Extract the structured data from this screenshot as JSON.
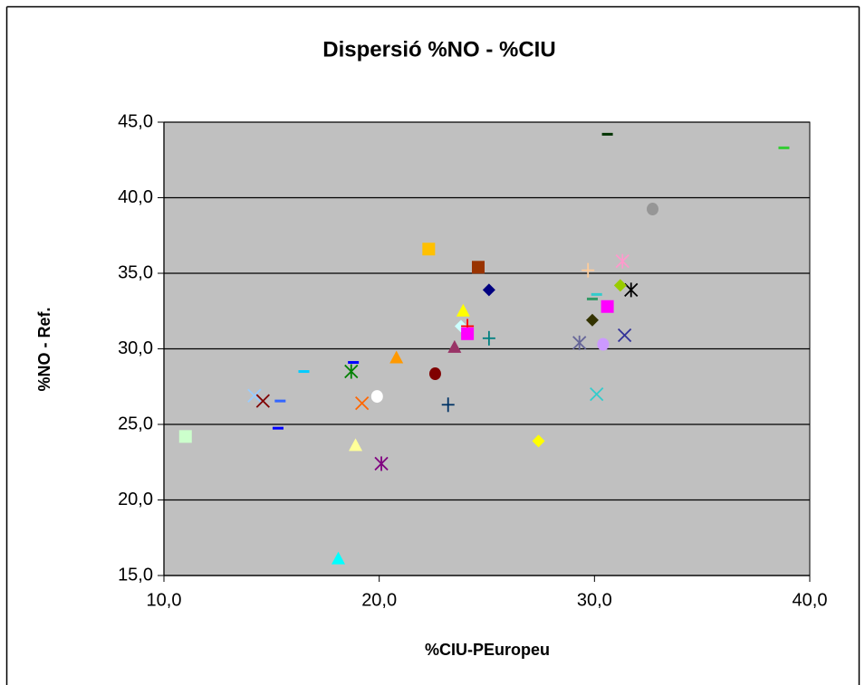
{
  "chart_data": {
    "type": "scatter",
    "title": "Dispersió %NO - %CIU",
    "x_label": "%CIU-PEuropeu",
    "y_label": "%NO - Ref.",
    "xlim": [
      10,
      40
    ],
    "ylim": [
      15,
      45
    ],
    "xticks": [
      {
        "value": 10,
        "label": "10,0"
      },
      {
        "value": 20,
        "label": "20,0"
      },
      {
        "value": 30,
        "label": "30,0"
      },
      {
        "value": 40,
        "label": "40,0"
      }
    ],
    "yticks": [
      {
        "value": 15,
        "label": "15,0"
      },
      {
        "value": 20,
        "label": "20,0"
      },
      {
        "value": 25,
        "label": "25,0"
      },
      {
        "value": 30,
        "label": "30,0"
      },
      {
        "value": 35,
        "label": "35,0"
      },
      {
        "value": 40,
        "label": "40,0"
      },
      {
        "value": 45,
        "label": "45,0"
      }
    ],
    "grid": true,
    "plot_background": "#c0c0c0",
    "series": [
      {
        "color": "#003300",
        "marker": "dash",
        "x": [
          30.6
        ],
        "values": [
          44.2
        ]
      },
      {
        "color": "#33cc33",
        "marker": "dash",
        "x": [
          38.8
        ],
        "values": [
          43.3
        ]
      },
      {
        "color": "#969696",
        "marker": "circle",
        "x": [
          32.7
        ],
        "values": [
          39.25
        ]
      },
      {
        "color": "#ffc000",
        "marker": "square",
        "x": [
          22.3
        ],
        "values": [
          36.6
        ]
      },
      {
        "color": "#993300",
        "marker": "square",
        "x": [
          24.6
        ],
        "values": [
          35.4
        ]
      },
      {
        "color": "#ff99cc",
        "marker": "asterisk",
        "x": [
          31.3
        ],
        "values": [
          35.8
        ]
      },
      {
        "color": "#ffcc99",
        "marker": "plus",
        "x": [
          29.7
        ],
        "values": [
          35.2
        ]
      },
      {
        "color": "#000000",
        "marker": "asterisk",
        "x": [
          31.7
        ],
        "values": [
          33.9
        ]
      },
      {
        "color": "#000080",
        "marker": "diamond",
        "x": [
          25.1
        ],
        "values": [
          33.9
        ]
      },
      {
        "color": "#99cc00",
        "marker": "diamond",
        "x": [
          31.2
        ],
        "values": [
          34.2
        ]
      },
      {
        "color": "#33cccc",
        "marker": "dash",
        "x": [
          30.1
        ],
        "values": [
          33.6
        ]
      },
      {
        "color": "#339966",
        "marker": "dash",
        "x": [
          29.9
        ],
        "values": [
          33.3
        ]
      },
      {
        "color": "#ff00ff",
        "marker": "square",
        "x": [
          30.6
        ],
        "values": [
          32.8
        ]
      },
      {
        "color": "#ffff00",
        "marker": "triangle",
        "x": [
          23.9
        ],
        "values": [
          32.5
        ]
      },
      {
        "color": "#333300",
        "marker": "diamond",
        "x": [
          29.9
        ],
        "values": [
          31.9
        ]
      },
      {
        "color": "#ccffff",
        "marker": "diamond",
        "x": [
          23.8
        ],
        "values": [
          31.5
        ]
      },
      {
        "color": "#ff0000",
        "marker": "plus",
        "x": [
          24.1
        ],
        "values": [
          31.5
        ]
      },
      {
        "color": "#ff00ff",
        "marker": "square",
        "x": [
          24.1
        ],
        "values": [
          31.0
        ]
      },
      {
        "color": "#008080",
        "marker": "plus",
        "x": [
          25.1
        ],
        "values": [
          30.7
        ]
      },
      {
        "color": "#333399",
        "marker": "x",
        "x": [
          31.4
        ],
        "values": [
          30.9
        ]
      },
      {
        "color": "#666699",
        "marker": "asterisk",
        "x": [
          29.3
        ],
        "values": [
          30.4
        ]
      },
      {
        "color": "#cc99ff",
        "marker": "circle",
        "x": [
          30.4
        ],
        "values": [
          30.3
        ]
      },
      {
        "color": "#993366",
        "marker": "triangle",
        "x": [
          23.5
        ],
        "values": [
          30.1
        ]
      },
      {
        "color": "#ff9900",
        "marker": "triangle",
        "x": [
          20.8
        ],
        "values": [
          29.4
        ]
      },
      {
        "color": "#0000ff",
        "marker": "dash",
        "x": [
          18.8
        ],
        "values": [
          29.1
        ]
      },
      {
        "color": "#00ccff",
        "marker": "dash",
        "x": [
          16.5
        ],
        "values": [
          28.5
        ]
      },
      {
        "color": "#008000",
        "marker": "asterisk",
        "x": [
          18.7
        ],
        "values": [
          28.5
        ]
      },
      {
        "color": "#800000",
        "marker": "circle",
        "x": [
          22.6
        ],
        "values": [
          28.35
        ]
      },
      {
        "color": "#ffffff",
        "marker": "circle",
        "x": [
          19.9
        ],
        "values": [
          26.85
        ]
      },
      {
        "color": "#33cccc",
        "marker": "x",
        "x": [
          30.1
        ],
        "values": [
          27.0
        ]
      },
      {
        "color": "#99ccff",
        "marker": "x",
        "x": [
          14.2
        ],
        "values": [
          26.9
        ]
      },
      {
        "color": "#800000",
        "marker": "x",
        "x": [
          14.6
        ],
        "values": [
          26.55
        ]
      },
      {
        "color": "#3366ff",
        "marker": "dash",
        "x": [
          15.4
        ],
        "values": [
          26.55
        ]
      },
      {
        "color": "#ff6600",
        "marker": "x",
        "x": [
          19.2
        ],
        "values": [
          26.4
        ]
      },
      {
        "color": "#003366",
        "marker": "plus",
        "x": [
          23.2
        ],
        "values": [
          26.3
        ]
      },
      {
        "color": "#0000ff",
        "marker": "dash",
        "x": [
          15.3
        ],
        "values": [
          24.75
        ]
      },
      {
        "color": "#ccffcc",
        "marker": "square",
        "x": [
          11.0
        ],
        "values": [
          24.2
        ]
      },
      {
        "color": "#ffff00",
        "marker": "diamond",
        "x": [
          27.4
        ],
        "values": [
          23.9
        ]
      },
      {
        "color": "#ffff99",
        "marker": "triangle",
        "x": [
          18.9
        ],
        "values": [
          23.6
        ]
      },
      {
        "color": "#800080",
        "marker": "asterisk",
        "x": [
          20.1
        ],
        "values": [
          22.4
        ]
      },
      {
        "color": "#00ffff",
        "marker": "triangle",
        "x": [
          18.1
        ],
        "values": [
          16.1
        ]
      }
    ]
  }
}
